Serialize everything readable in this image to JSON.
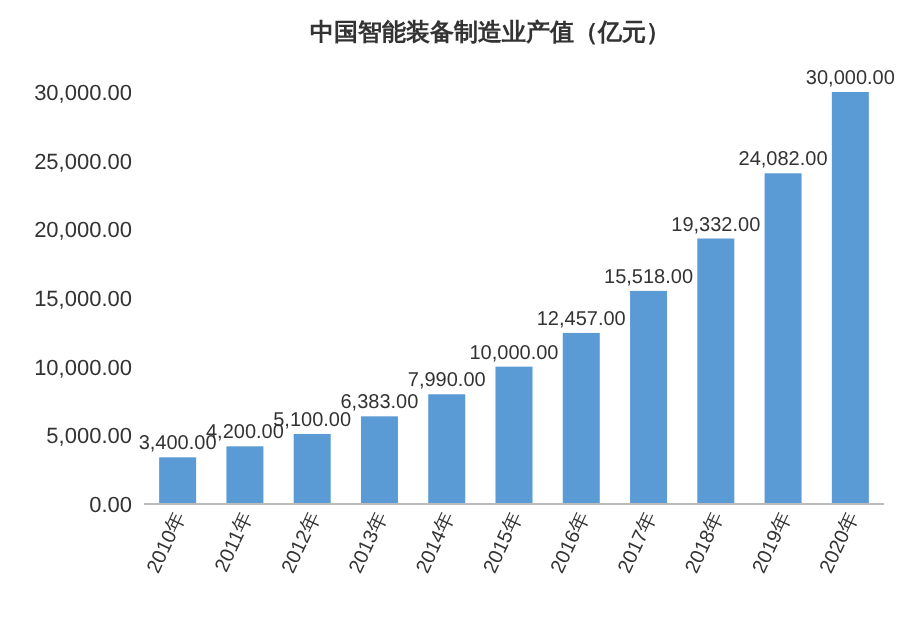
{
  "chart_data": {
    "type": "bar",
    "title": "中国智能装备制造业产值（亿元）",
    "categories": [
      "2010年",
      "2011年",
      "2012年",
      "2013年",
      "2014年",
      "2015年",
      "2016年",
      "2017年",
      "2018年",
      "2019年",
      "2020年"
    ],
    "values": [
      3400,
      4200,
      5100,
      6383,
      7990,
      10000,
      12457,
      15518,
      19332,
      24082,
      30000
    ],
    "value_labels": [
      "3,400.00",
      "4,200.00",
      "5,100.00",
      "6,383.00",
      "7,990.00",
      "10,000.00",
      "12,457.00",
      "15,518.00",
      "19,332.00",
      "24,082.00",
      "30,000.00"
    ],
    "color": "#5b9bd5",
    "ylim": [
      0,
      30000
    ],
    "yticks": [
      {
        "value": 0,
        "label": "0.00"
      },
      {
        "value": 5000,
        "label": "5,000.00"
      },
      {
        "value": 10000,
        "label": "10,000.00"
      },
      {
        "value": 15000,
        "label": "15,000.00"
      },
      {
        "value": 20000,
        "label": "20,000.00"
      },
      {
        "value": 25000,
        "label": "25,000.00"
      },
      {
        "value": 30000,
        "label": "30,000.00"
      }
    ]
  }
}
